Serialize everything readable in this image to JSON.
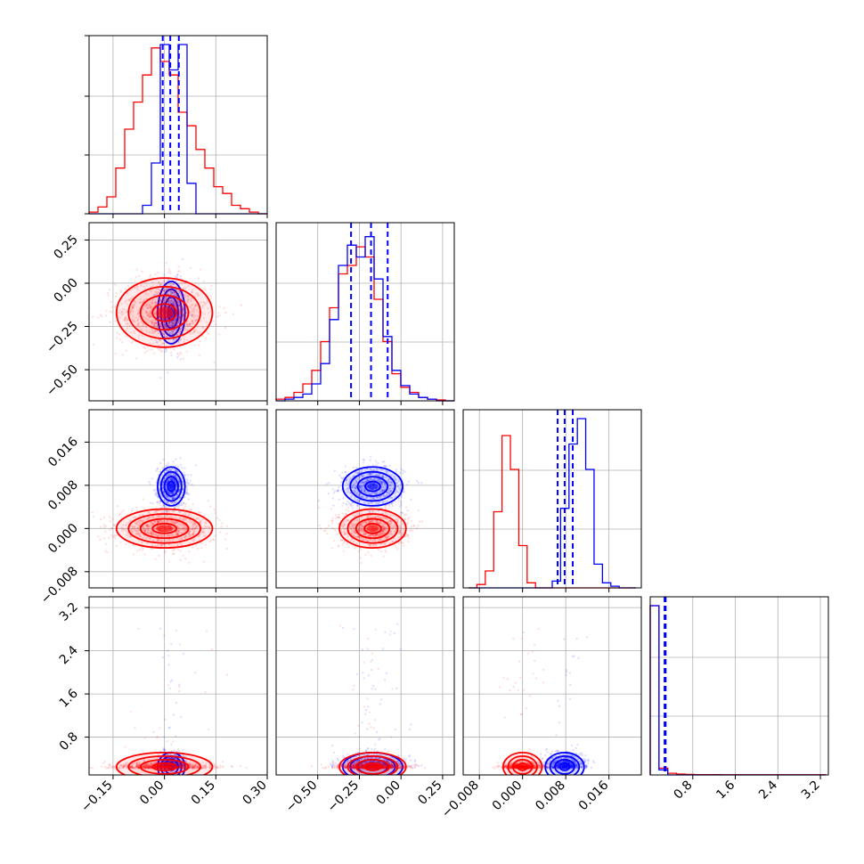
{
  "figure": {
    "type": "corner-plot"
  },
  "colors": {
    "series_a": "#0000ff",
    "series_b": "#ff0000",
    "grid": "#b0b0b0",
    "axes": "#000000"
  },
  "chart_data": {
    "type": "corner",
    "series": [
      {
        "color": "#0000ff",
        "means": [
          0.02,
          -0.17,
          0.0078,
          0.28
        ],
        "sigmas": [
          0.02,
          0.09,
          0.0018,
          0.3
        ],
        "quantiles": [
          [
            -0.005,
            0.017,
            0.042
          ],
          [
            -0.3,
            -0.18,
            -0.08
          ],
          [
            0.0065,
            0.0078,
            0.0093
          ],
          [
            0.27,
            0.28,
            0.29
          ]
        ]
      },
      {
        "color": "#ff0000",
        "means": [
          0.0,
          -0.17,
          0.0,
          0.25
        ],
        "sigmas": [
          0.07,
          0.1,
          0.0018,
          0.08
        ]
      }
    ],
    "panels": [
      {
        "row": 0,
        "col": 0,
        "type": "histogram",
        "xlim": [
          -0.22,
          0.3
        ],
        "bins_blue": [
          0,
          0,
          0,
          0,
          0,
          0,
          0.05,
          0.3,
          1.0,
          0.85,
          1.0,
          0.18,
          0,
          0,
          0,
          0,
          0,
          0,
          0,
          0
        ],
        "bins_red": [
          0.01,
          0.04,
          0.1,
          0.27,
          0.5,
          0.66,
          0.82,
          0.98,
          0.9,
          0.82,
          0.6,
          0.52,
          0.38,
          0.27,
          0.16,
          0.12,
          0.05,
          0.03,
          0.01,
          0.0
        ]
      },
      {
        "row": 1,
        "col": 1,
        "type": "histogram",
        "xlim": [
          -0.75,
          0.32
        ],
        "bins_blue": [
          0,
          0.01,
          0.02,
          0.04,
          0.1,
          0.22,
          0.48,
          0.8,
          0.92,
          0.85,
          0.97,
          0.72,
          0.38,
          0.18,
          0.09,
          0.04,
          0.02,
          0.01,
          0,
          0
        ],
        "bins_red": [
          0.01,
          0.02,
          0.05,
          0.1,
          0.18,
          0.35,
          0.55,
          0.75,
          0.8,
          0.91,
          0.85,
          0.6,
          0.35,
          0.16,
          0.08,
          0.05,
          0.02,
          0.01,
          0.005,
          0
        ]
      },
      {
        "row": 2,
        "col": 2,
        "type": "histogram",
        "xlim": [
          -0.01,
          0.021
        ],
        "bins_blue": [
          0,
          0,
          0,
          0,
          0,
          0,
          0,
          0,
          0,
          0,
          0.04,
          0.47,
          0.85,
          1.0,
          0.7,
          0.14,
          0.03,
          0.01,
          0,
          0
        ],
        "bins_red": [
          0,
          0.02,
          0.1,
          0.45,
          0.9,
          0.7,
          0.25,
          0.03,
          0.0,
          0,
          0,
          0,
          0,
          0,
          0,
          0,
          0,
          0,
          0,
          0
        ]
      },
      {
        "row": 3,
        "col": 3,
        "type": "histogram",
        "xlim": [
          0.0,
          3.3
        ],
        "bins_blue": [
          1.0,
          0.03,
          0.0,
          0.0,
          0.0,
          0.0,
          0.0,
          0.0,
          0.0,
          0.0,
          0.0,
          0.0,
          0.0,
          0.0,
          0.0,
          0.0,
          0.0,
          0.0,
          0.0,
          0.0
        ],
        "bins_red": [
          1.0,
          0.04,
          0.01,
          0.005,
          0.003,
          0.002,
          0.002,
          0.002,
          0.001,
          0.001,
          0.001,
          0.001,
          0.001,
          0.001,
          0.001,
          0.001,
          0.001,
          0.001,
          0.001,
          0.001
        ]
      }
    ],
    "axes_ticks": {
      "p1": [
        -0.15,
        0.0,
        0.15,
        0.3
      ],
      "p2": [
        -0.5,
        -0.25,
        0.0,
        0.25
      ],
      "p3": [
        -0.008,
        0.0,
        0.008,
        0.016
      ],
      "p4": [
        0.8,
        1.6,
        2.4,
        3.2
      ]
    },
    "tick_labels": {
      "p1": [
        "−0.15",
        "0.00",
        "0.15",
        "0.30"
      ],
      "p2": [
        "−0.50",
        "−0.25",
        "0.00",
        "0.25"
      ],
      "p3": [
        "−0.008",
        "0.000",
        "0.008",
        "0.016"
      ],
      "p4": [
        "0.8",
        "1.6",
        "2.4",
        "3.2"
      ]
    },
    "ylim_scatter_p2": [
      -0.68,
      0.35
    ],
    "ylim_scatter_p3": [
      -0.011,
      0.022
    ],
    "ylim_scatter_p4": [
      0.1,
      3.4
    ],
    "grid": true
  }
}
